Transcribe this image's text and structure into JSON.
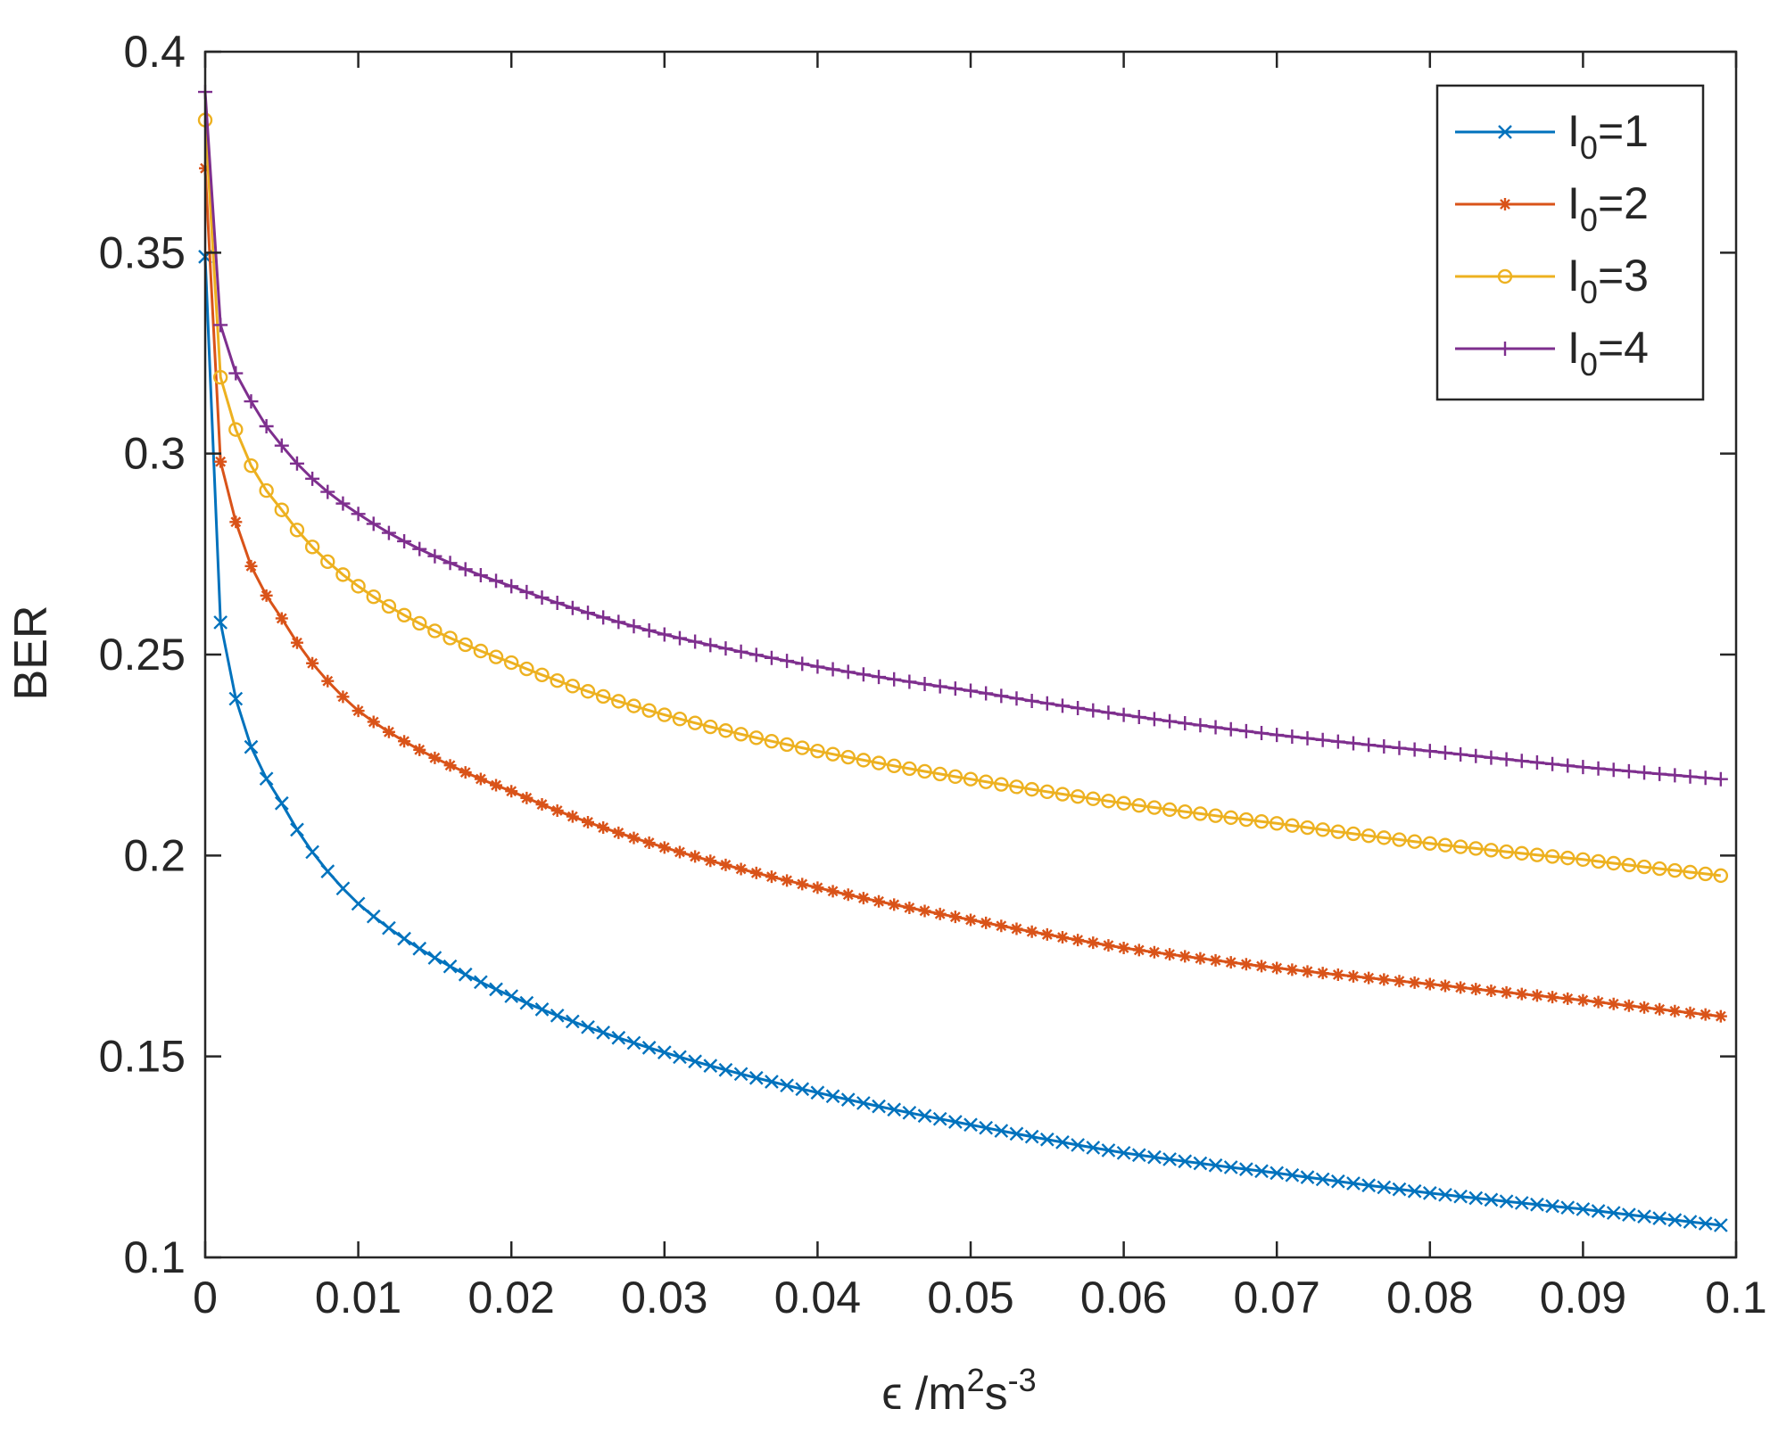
{
  "chart_data": {
    "type": "line",
    "xlabel": {
      "symbol": "ϵ",
      "unit_prefix": " /m",
      "exp1": "2",
      "unit_mid": "s",
      "exp2": "-3"
    },
    "ylabel": "BER",
    "xlim": [
      0,
      0.1
    ],
    "ylim": [
      0.1,
      0.4
    ],
    "x_ticks": [
      0,
      0.01,
      0.02,
      0.03,
      0.04,
      0.05,
      0.06,
      0.07,
      0.08,
      0.09,
      0.1
    ],
    "x_tick_labels": [
      "0",
      "0.01",
      "0.02",
      "0.03",
      "0.04",
      "0.05",
      "0.06",
      "0.07",
      "0.08",
      "0.09",
      "0.1"
    ],
    "y_ticks": [
      0.1,
      0.15,
      0.2,
      0.25,
      0.3,
      0.35,
      0.4
    ],
    "y_tick_labels": [
      "0.1",
      "0.15",
      "0.2",
      "0.25",
      "0.3",
      "0.35",
      "0.4"
    ],
    "grid": false,
    "legend_position": "top-right",
    "x_points": {
      "start": 0,
      "stop": 0.099,
      "step": 0.001
    },
    "series": [
      {
        "name": "I0=1",
        "legend_label": {
          "base": "I",
          "sub": "0",
          "rest": "=1"
        },
        "color": "#0072BD",
        "marker": "x",
        "anchors": [
          [
            0,
            0.349
          ],
          [
            0.001,
            0.258
          ],
          [
            0.002,
            0.239
          ],
          [
            0.003,
            0.227
          ],
          [
            0.005,
            0.213
          ],
          [
            0.01,
            0.188
          ],
          [
            0.02,
            0.165
          ],
          [
            0.03,
            0.151
          ],
          [
            0.04,
            0.141
          ],
          [
            0.05,
            0.133
          ],
          [
            0.06,
            0.126
          ],
          [
            0.07,
            0.121
          ],
          [
            0.08,
            0.116
          ],
          [
            0.09,
            0.112
          ],
          [
            0.099,
            0.108
          ]
        ]
      },
      {
        "name": "I0=2",
        "legend_label": {
          "base": "I",
          "sub": "0",
          "rest": "=2"
        },
        "color": "#D95319",
        "marker": "asterisk",
        "anchors": [
          [
            0,
            0.371
          ],
          [
            0.001,
            0.298
          ],
          [
            0.002,
            0.283
          ],
          [
            0.003,
            0.272
          ],
          [
            0.005,
            0.259
          ],
          [
            0.01,
            0.236
          ],
          [
            0.02,
            0.216
          ],
          [
            0.03,
            0.202
          ],
          [
            0.04,
            0.192
          ],
          [
            0.05,
            0.184
          ],
          [
            0.06,
            0.177
          ],
          [
            0.07,
            0.172
          ],
          [
            0.08,
            0.168
          ],
          [
            0.09,
            0.164
          ],
          [
            0.099,
            0.16
          ]
        ]
      },
      {
        "name": "I0=3",
        "legend_label": {
          "base": "I",
          "sub": "0",
          "rest": "=3"
        },
        "color": "#EDB120",
        "marker": "circle",
        "anchors": [
          [
            0,
            0.383
          ],
          [
            0.001,
            0.319
          ],
          [
            0.002,
            0.306
          ],
          [
            0.003,
            0.297
          ],
          [
            0.005,
            0.286
          ],
          [
            0.01,
            0.267
          ],
          [
            0.02,
            0.248
          ],
          [
            0.03,
            0.235
          ],
          [
            0.04,
            0.226
          ],
          [
            0.05,
            0.219
          ],
          [
            0.06,
            0.213
          ],
          [
            0.07,
            0.208
          ],
          [
            0.08,
            0.203
          ],
          [
            0.09,
            0.199
          ],
          [
            0.099,
            0.195
          ]
        ]
      },
      {
        "name": "I0=4",
        "legend_label": {
          "base": "I",
          "sub": "0",
          "rest": "=4"
        },
        "color": "#7E2F8E",
        "marker": "plus",
        "anchors": [
          [
            0,
            0.39
          ],
          [
            0.001,
            0.332
          ],
          [
            0.002,
            0.32
          ],
          [
            0.003,
            0.313
          ],
          [
            0.005,
            0.302
          ],
          [
            0.01,
            0.285
          ],
          [
            0.02,
            0.267
          ],
          [
            0.03,
            0.255
          ],
          [
            0.04,
            0.247
          ],
          [
            0.05,
            0.241
          ],
          [
            0.06,
            0.235
          ],
          [
            0.07,
            0.23
          ],
          [
            0.08,
            0.226
          ],
          [
            0.09,
            0.222
          ],
          [
            0.099,
            0.219
          ]
        ]
      }
    ]
  }
}
